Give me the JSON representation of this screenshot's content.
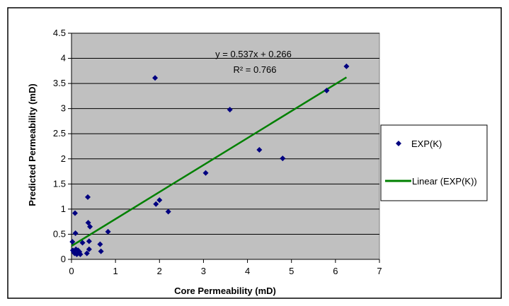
{
  "chart_data": {
    "type": "scatter",
    "title": "",
    "xlabel": "Core Permeability (mD)",
    "ylabel": "Predicted Permeability (mD)",
    "xlim": [
      0,
      7
    ],
    "ylim": [
      0,
      4.5
    ],
    "x_ticks": [
      "0",
      "1",
      "2",
      "3",
      "4",
      "5",
      "6",
      "7"
    ],
    "y_ticks": [
      "0",
      "0.5",
      "1",
      "1.5",
      "2",
      "2.5",
      "3",
      "3.5",
      "4",
      "4.5"
    ],
    "grid": true,
    "plot_background": "#c0c0c0",
    "legend_position": "right",
    "series": [
      {
        "name": "EXP(K)",
        "kind": "scatter",
        "color": "#000080",
        "marker": "diamond",
        "points": [
          [
            0.02,
            0.35
          ],
          [
            0.03,
            0.18
          ],
          [
            0.05,
            0.15
          ],
          [
            0.07,
            0.12
          ],
          [
            0.08,
            0.92
          ],
          [
            0.09,
            0.52
          ],
          [
            0.1,
            0.2
          ],
          [
            0.12,
            0.1
          ],
          [
            0.15,
            0.18
          ],
          [
            0.18,
            0.15
          ],
          [
            0.2,
            0.1
          ],
          [
            0.25,
            0.33
          ],
          [
            0.35,
            0.12
          ],
          [
            0.37,
            1.24
          ],
          [
            0.38,
            0.73
          ],
          [
            0.4,
            0.2
          ],
          [
            0.4,
            0.36
          ],
          [
            0.42,
            0.65
          ],
          [
            0.65,
            0.3
          ],
          [
            0.67,
            0.16
          ],
          [
            0.83,
            0.55
          ],
          [
            1.9,
            3.61
          ],
          [
            1.92,
            1.1
          ],
          [
            2.0,
            1.18
          ],
          [
            2.2,
            0.95
          ],
          [
            3.05,
            1.72
          ],
          [
            3.6,
            2.98
          ],
          [
            4.27,
            2.18
          ],
          [
            4.8,
            2.01
          ],
          [
            5.8,
            3.36
          ],
          [
            6.25,
            3.84
          ]
        ]
      },
      {
        "name": "Linear (EXP(K))",
        "kind": "line",
        "color": "#008000",
        "slope": 0.537,
        "intercept": 0.266,
        "x_range": [
          0,
          6.25
        ]
      }
    ],
    "annotations": {
      "equation": "y = 0.537x + 0.266",
      "r_squared": "R² = 0.766"
    }
  }
}
